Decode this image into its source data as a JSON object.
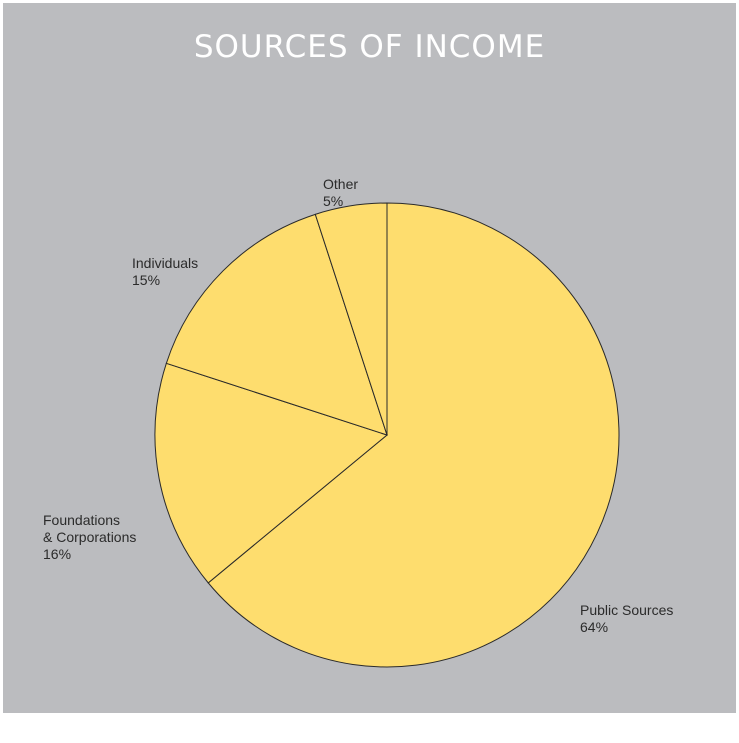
{
  "chart_data": {
    "type": "pie",
    "title": "SOURCES OF INCOME",
    "slices": [
      {
        "label": "Public Sources",
        "label_lines": [
          "Public Sources"
        ],
        "value": 64,
        "value_label": "64%",
        "color": "#fedd6e"
      },
      {
        "label": "Foundations & Corporations",
        "label_lines": [
          "Foundations",
          "& Corporations"
        ],
        "value": 16,
        "value_label": "16%",
        "color": "#fedd6e"
      },
      {
        "label": "Individuals",
        "label_lines": [
          "Individuals"
        ],
        "value": 15,
        "value_label": "15%",
        "color": "#fedd6e"
      },
      {
        "label": "Other",
        "label_lines": [
          "Other"
        ],
        "value": 5,
        "value_label": "5%",
        "color": "#fedd6e"
      }
    ],
    "background_color": "#bbbcbf",
    "title_color": "#ffffff"
  }
}
